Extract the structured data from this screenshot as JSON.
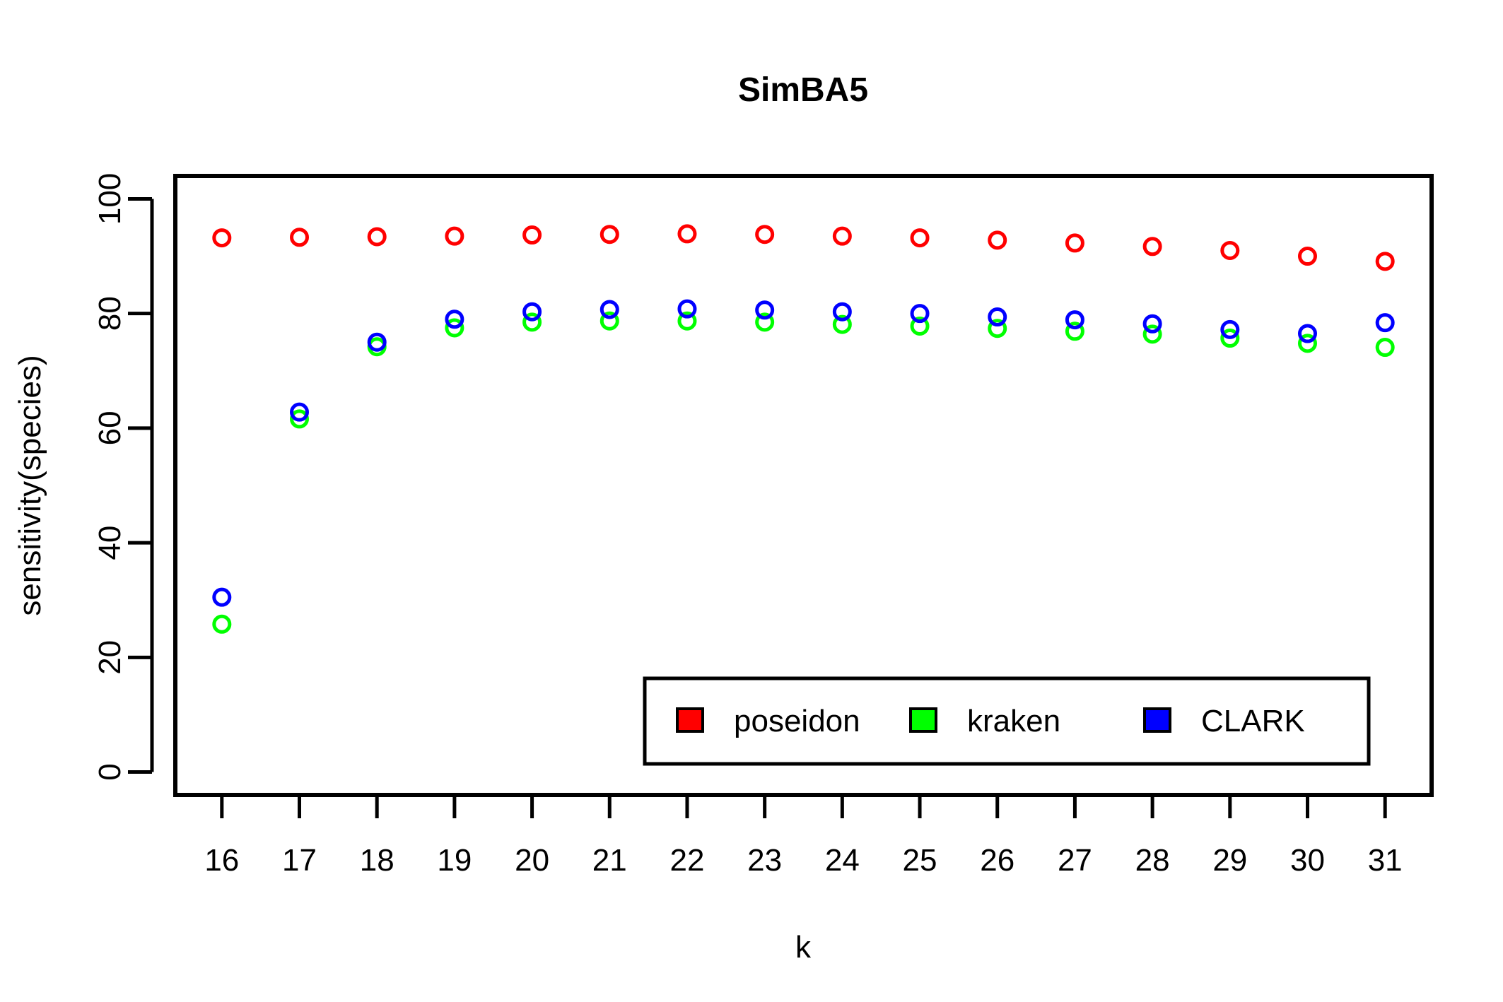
{
  "chart_data": {
    "type": "scatter",
    "title": "SimBA5",
    "xlabel": "k",
    "ylabel": "sensitivity(species)",
    "x": [
      16,
      17,
      18,
      19,
      20,
      21,
      22,
      23,
      24,
      25,
      26,
      27,
      28,
      29,
      30,
      31
    ],
    "xlim": [
      15.4,
      31.6
    ],
    "ylim": [
      -4,
      104
    ],
    "yticks": [
      0,
      20,
      40,
      60,
      80,
      100
    ],
    "grid": false,
    "legend_position": "bottom-right",
    "series": [
      {
        "name": "poseidon",
        "color": "#ff0000",
        "values": [
          93.2,
          93.3,
          93.4,
          93.5,
          93.7,
          93.8,
          93.9,
          93.8,
          93.5,
          93.2,
          92.8,
          92.3,
          91.7,
          91.0,
          90.0,
          89.1
        ]
      },
      {
        "name": "kraken",
        "color": "#00ff00",
        "values": [
          25.8,
          61.6,
          74.2,
          77.5,
          78.5,
          78.7,
          78.7,
          78.5,
          78.1,
          77.8,
          77.4,
          76.9,
          76.4,
          75.7,
          74.8,
          74.1
        ]
      },
      {
        "name": "CLARK",
        "color": "#0000ff",
        "values": [
          30.5,
          62.8,
          75.0,
          79.0,
          80.3,
          80.7,
          80.8,
          80.6,
          80.3,
          80.0,
          79.4,
          78.9,
          78.2,
          77.2,
          76.5,
          78.4
        ]
      }
    ]
  }
}
